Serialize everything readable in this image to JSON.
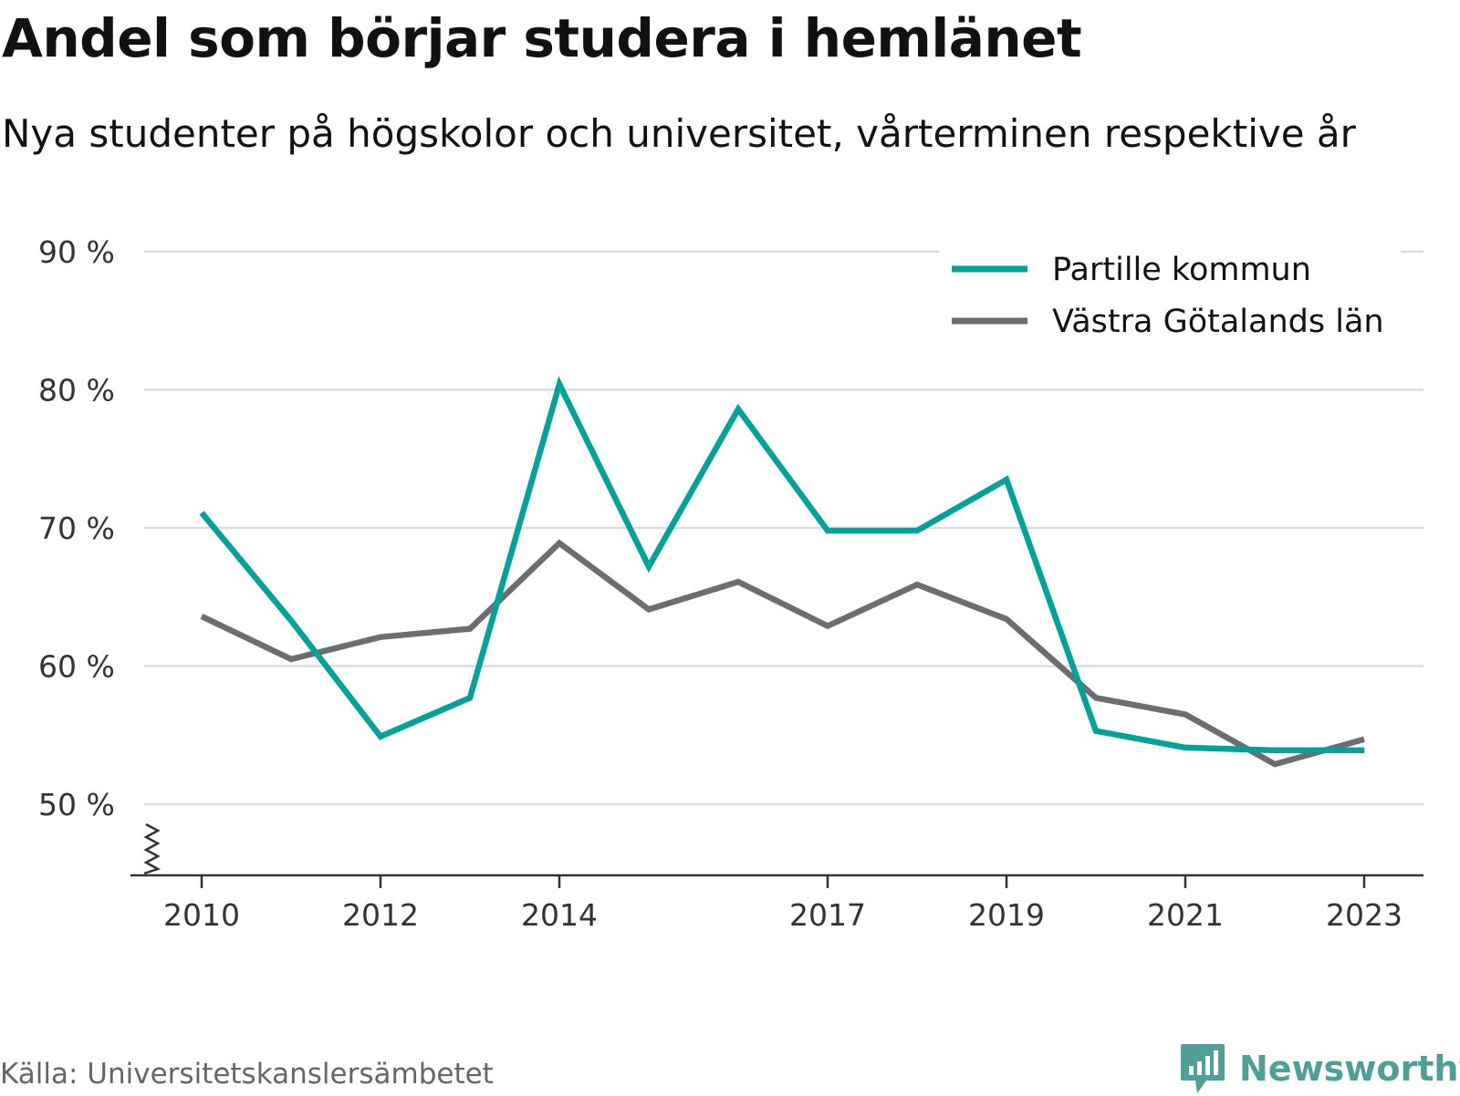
{
  "header": {
    "title": "Andel som börjar studera i hemlänet",
    "subtitle": "Nya studenter på högskolor och universitet, vårterminen respektive år"
  },
  "footer": {
    "source": "Källa: Universitetskanslersämbetet",
    "brand": "Newsworthy",
    "brand_color": "#4e9f97"
  },
  "chart_data": {
    "type": "line",
    "title": "Andel som börjar studera i hemlänet",
    "subtitle": "Nya studenter på högskolor och universitet, vårterminen respektive år",
    "x": [
      2010,
      2011,
      2012,
      2013,
      2014,
      2015,
      2016,
      2017,
      2018,
      2019,
      2020,
      2021,
      2022,
      2023
    ],
    "x_ticks": [
      2010,
      2012,
      2014,
      2017,
      2019,
      2021,
      2023
    ],
    "y_ticks": [
      50,
      60,
      70,
      80,
      90
    ],
    "y_tick_suffix": " %",
    "ylim": [
      45,
      90
    ],
    "grid": "horizontal",
    "legend_position": "top-right",
    "series": [
      {
        "name": "Partille kommun",
        "color": "#00a29a",
        "values": [
          71.1,
          63.3,
          54.9,
          57.7,
          80.4,
          67.2,
          78.6,
          69.8,
          69.8,
          73.5,
          55.3,
          54.1,
          53.9,
          53.9
        ]
      },
      {
        "name": "Västra Götalands län",
        "color": "#6e6c73",
        "values": [
          63.6,
          60.5,
          62.1,
          62.7,
          68.9,
          64.1,
          66.1,
          62.9,
          65.9,
          63.4,
          57.7,
          56.5,
          52.9,
          54.7
        ]
      }
    ]
  }
}
